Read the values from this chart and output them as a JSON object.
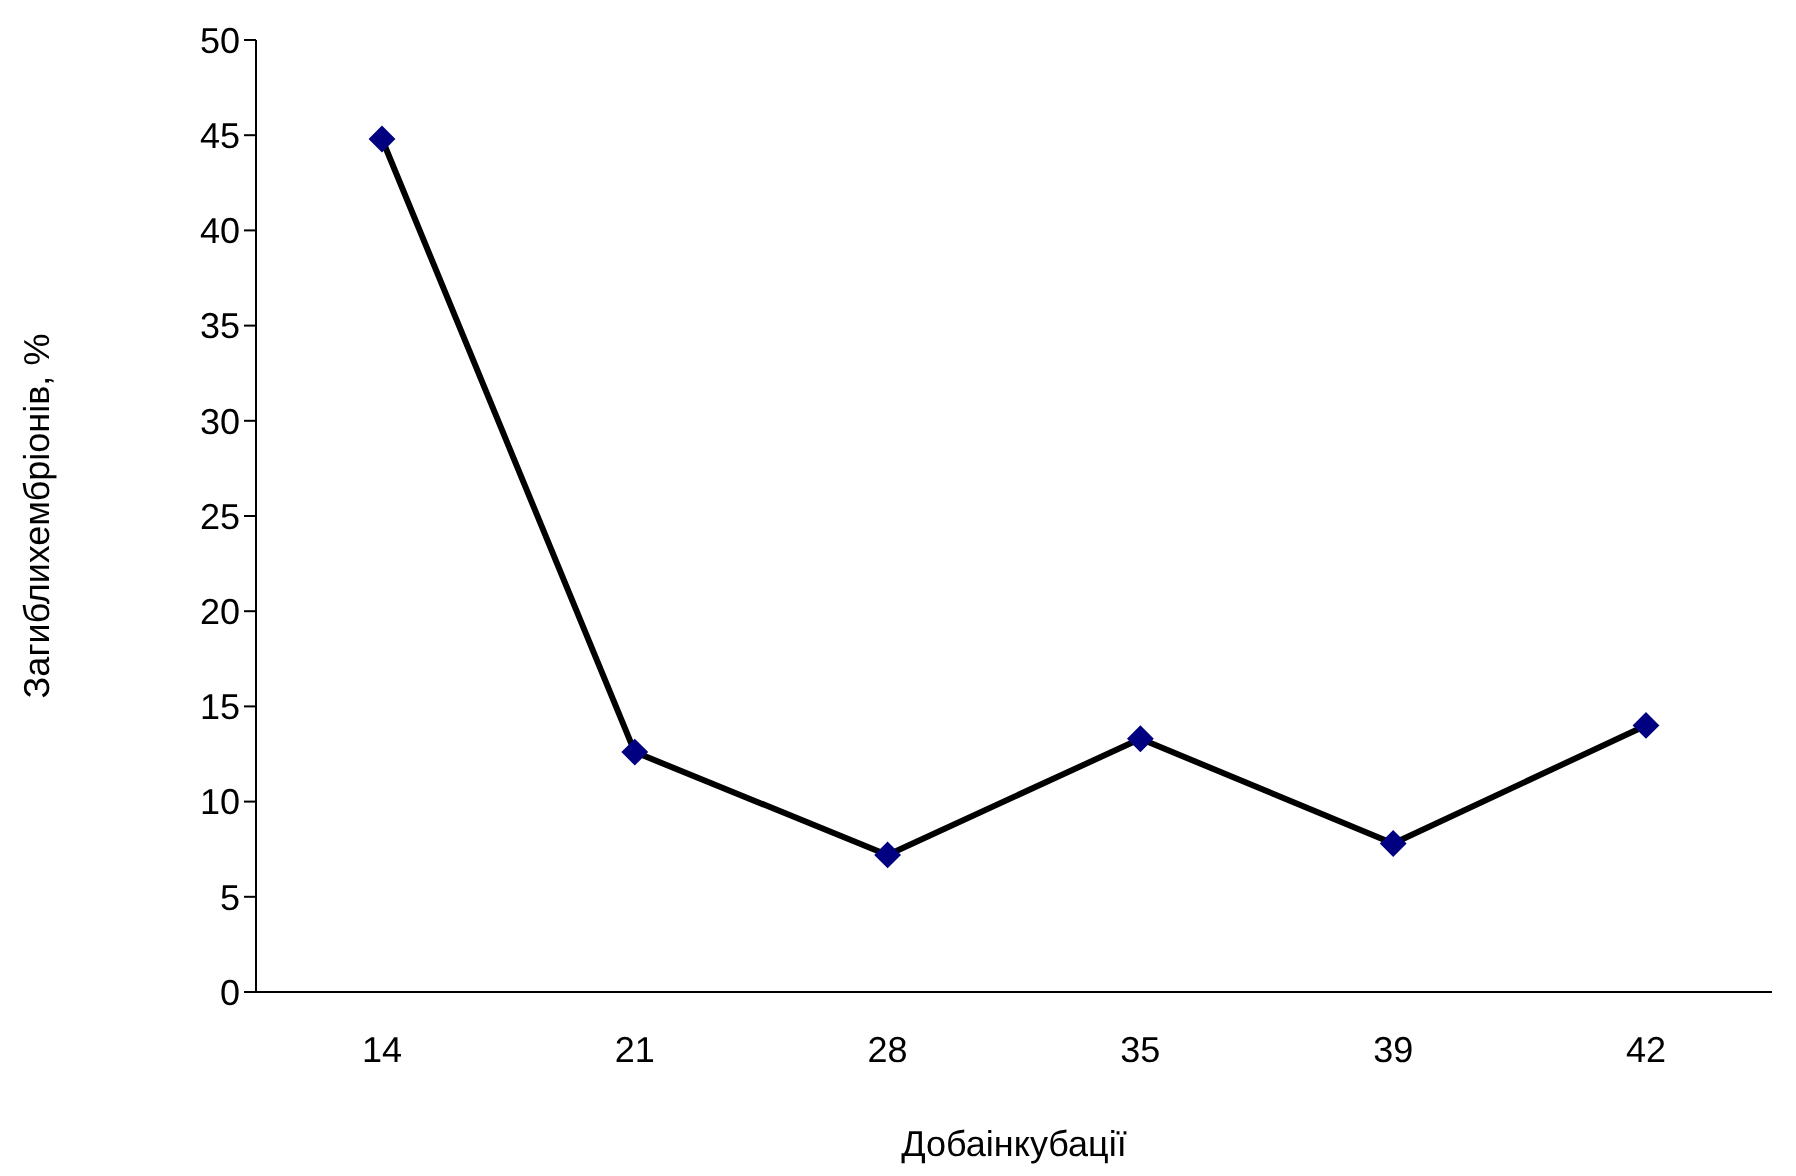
{
  "chart_data": {
    "type": "line",
    "xlabel": "Добаінкубації",
    "ylabel": "Загиблихембріонів, %",
    "categories": [
      "14",
      "21",
      "28",
      "35",
      "39",
      "42"
    ],
    "series": [
      {
        "color": "#000080",
        "values": [
          44.8,
          12.6,
          7.2,
          13.3,
          7.8,
          14.0
        ]
      }
    ],
    "ylim": [
      0,
      50
    ],
    "yticks": [
      0,
      5,
      10,
      15,
      20,
      25,
      30,
      35,
      40,
      45,
      50
    ],
    "marker": "diamond",
    "grid": false,
    "legend": false
  }
}
